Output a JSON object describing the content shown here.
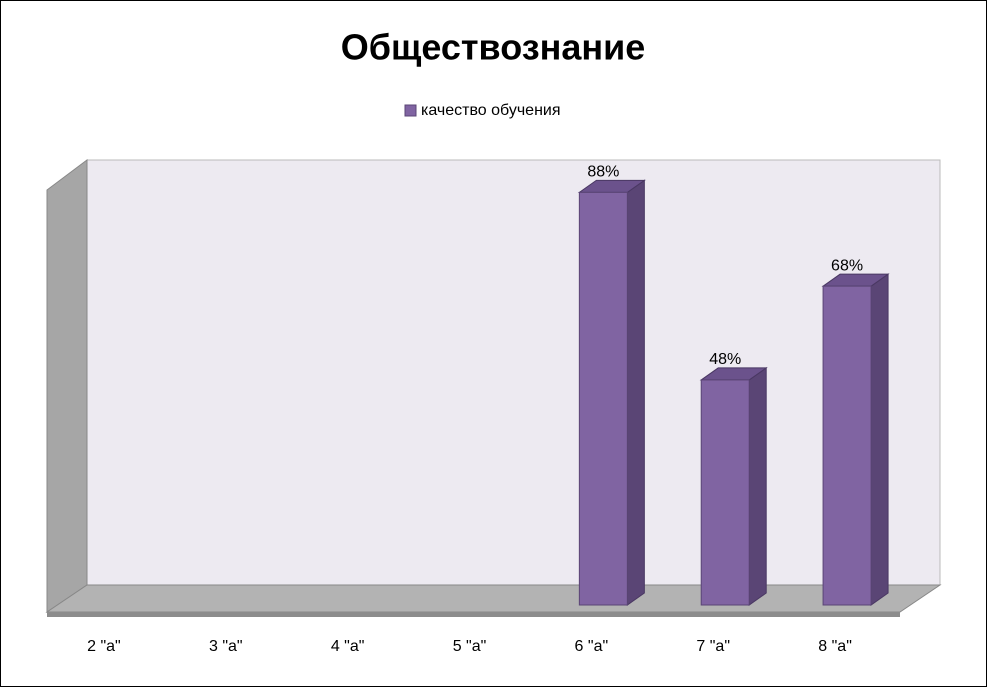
{
  "chart_data": {
    "type": "bar3d",
    "title": "Обществознание",
    "categories": [
      "2 \"а\"",
      "3 \"а\"",
      "4 \"а\"",
      "5 \"а\"",
      "6 \"а\"",
      "7 \"а\"",
      "8 \"а\""
    ],
    "series": [
      {
        "name": "качество обучения",
        "color": "#8064a2",
        "values": [
          null,
          null,
          null,
          null,
          88,
          48,
          68
        ],
        "value_labels": [
          null,
          null,
          null,
          null,
          "88%",
          "48%",
          "68%"
        ]
      }
    ],
    "ylim": [
      0,
      90
    ],
    "legend": "top"
  }
}
